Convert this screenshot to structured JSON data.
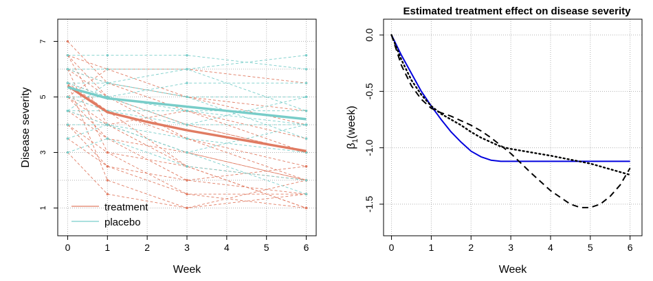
{
  "colors": {
    "treatment": "#e07b62",
    "placebo": "#78cdc9",
    "fit": "#0000dd",
    "black": "#000000",
    "grid": "#b0b0b0"
  },
  "chart_data": [
    {
      "type": "line",
      "title": "",
      "xlabel": "Week",
      "ylabel": "Disease severity",
      "xlim": [
        -0.25,
        6.25
      ],
      "ylim": [
        0,
        7.8
      ],
      "xticks": [
        "0",
        "1",
        "2",
        "3",
        "4",
        "5",
        "6"
      ],
      "yticks": [
        "1",
        "3",
        "5",
        "7"
      ],
      "grid": true,
      "legend_position": "bottom-left",
      "legend": [
        "treatment",
        "placebo"
      ],
      "x": [
        0,
        1,
        2,
        3,
        4,
        5,
        6
      ],
      "mean_series": [
        {
          "name": "treatment",
          "values": [
            5.4,
            4.45,
            4.1,
            3.8,
            3.55,
            3.3,
            3.05
          ]
        },
        {
          "name": "placebo",
          "values": [
            5.35,
            4.95,
            4.8,
            4.65,
            4.5,
            4.35,
            4.2
          ]
        }
      ],
      "subject_series": [
        {
          "group": "treatment",
          "x": [
            0,
            1,
            3,
            6
          ],
          "values": [
            7.0,
            5.5,
            4.5,
            3.5
          ]
        },
        {
          "group": "treatment",
          "x": [
            0,
            1,
            3,
            6
          ],
          "values": [
            6.5,
            4.0,
            2.5,
            2.0
          ]
        },
        {
          "group": "treatment",
          "x": [
            0,
            1,
            3,
            6
          ],
          "values": [
            6.0,
            3.0,
            1.5,
            1.0
          ]
        },
        {
          "group": "treatment",
          "x": [
            0,
            1,
            3,
            6
          ],
          "values": [
            6.0,
            5.0,
            4.0,
            3.0
          ]
        },
        {
          "group": "treatment",
          "x": [
            0,
            1,
            3,
            6
          ],
          "values": [
            5.5,
            2.0,
            1.0,
            1.5
          ]
        },
        {
          "group": "treatment",
          "x": [
            0,
            1,
            3,
            6
          ],
          "values": [
            5.5,
            4.5,
            3.5,
            2.5
          ]
        },
        {
          "group": "treatment",
          "x": [
            0,
            1,
            3,
            6
          ],
          "values": [
            5.0,
            6.0,
            5.0,
            4.0
          ]
        },
        {
          "group": "treatment",
          "x": [
            0,
            1,
            3,
            6
          ],
          "values": [
            5.0,
            3.5,
            2.0,
            1.5
          ]
        },
        {
          "group": "treatment",
          "x": [
            0,
            1,
            3,
            6
          ],
          "values": [
            4.5,
            4.0,
            3.0,
            2.0
          ]
        },
        {
          "group": "treatment",
          "x": [
            0,
            1,
            3,
            6
          ],
          "values": [
            4.0,
            3.0,
            2.5,
            1.0
          ]
        },
        {
          "group": "treatment",
          "x": [
            0,
            1,
            3,
            6
          ],
          "values": [
            3.5,
            2.5,
            2.0,
            2.5
          ]
        },
        {
          "group": "treatment",
          "x": [
            0,
            1,
            3,
            6
          ],
          "values": [
            3.0,
            1.5,
            1.0,
            2.0
          ]
        },
        {
          "group": "treatment",
          "x": [
            0,
            1,
            3,
            6
          ],
          "values": [
            6.5,
            6.0,
            6.0,
            5.5
          ]
        },
        {
          "group": "treatment",
          "x": [
            0,
            1,
            3,
            6
          ],
          "values": [
            5.0,
            4.5,
            2.5,
            1.0
          ]
        },
        {
          "group": "treatment",
          "x": [
            0,
            1,
            3,
            6
          ],
          "values": [
            6.0,
            5.5,
            5.0,
            4.5
          ]
        },
        {
          "group": "treatment",
          "x": [
            0,
            1,
            3,
            6
          ],
          "values": [
            4.5,
            3.5,
            3.0,
            2.0
          ]
        },
        {
          "group": "treatment",
          "x": [
            0,
            1,
            3,
            6
          ],
          "values": [
            5.5,
            5.0,
            4.0,
            3.0
          ]
        },
        {
          "group": "treatment",
          "x": [
            0,
            1,
            3,
            6
          ],
          "values": [
            4.0,
            2.5,
            1.5,
            1.5
          ]
        },
        {
          "group": "treatment",
          "x": [
            0,
            1,
            3,
            6
          ],
          "values": [
            6.5,
            5.0,
            3.5,
            2.0
          ]
        },
        {
          "group": "treatment",
          "x": [
            0,
            1,
            3,
            6
          ],
          "values": [
            5.0,
            4.0,
            4.5,
            3.0
          ]
        },
        {
          "group": "placebo",
          "x": [
            0,
            1,
            3,
            6
          ],
          "values": [
            6.5,
            6.5,
            6.5,
            6.0
          ]
        },
        {
          "group": "placebo",
          "x": [
            0,
            1,
            3,
            6
          ],
          "values": [
            6.0,
            6.0,
            6.0,
            6.5
          ]
        },
        {
          "group": "placebo",
          "x": [
            0,
            1,
            3,
            6
          ],
          "values": [
            5.5,
            5.5,
            5.0,
            5.0
          ]
        },
        {
          "group": "placebo",
          "x": [
            0,
            1,
            3,
            6
          ],
          "values": [
            5.5,
            5.0,
            5.5,
            5.5
          ]
        },
        {
          "group": "placebo",
          "x": [
            0,
            1,
            3,
            6
          ],
          "values": [
            5.0,
            5.0,
            4.5,
            4.0
          ]
        },
        {
          "group": "placebo",
          "x": [
            0,
            1,
            3,
            6
          ],
          "values": [
            5.0,
            4.5,
            4.5,
            4.5
          ]
        },
        {
          "group": "placebo",
          "x": [
            0,
            1,
            3,
            6
          ],
          "values": [
            4.5,
            4.5,
            4.0,
            4.0
          ]
        },
        {
          "group": "placebo",
          "x": [
            0,
            1,
            3,
            6
          ],
          "values": [
            4.5,
            4.0,
            3.0,
            4.0
          ]
        },
        {
          "group": "placebo",
          "x": [
            0,
            1,
            3,
            6
          ],
          "values": [
            4.0,
            4.0,
            3.5,
            3.0
          ]
        },
        {
          "group": "placebo",
          "x": [
            0,
            1,
            3,
            6
          ],
          "values": [
            3.0,
            3.5,
            2.5,
            2.0
          ]
        },
        {
          "group": "placebo",
          "x": [
            0,
            1,
            3,
            6
          ],
          "values": [
            6.0,
            5.5,
            6.0,
            4.5
          ]
        },
        {
          "group": "placebo",
          "x": [
            0,
            1,
            3,
            6
          ],
          "values": [
            5.5,
            5.0,
            4.0,
            5.0
          ]
        },
        {
          "group": "placebo",
          "x": [
            0,
            1,
            3,
            6
          ],
          "values": [
            4.5,
            5.5,
            5.0,
            3.5
          ]
        },
        {
          "group": "placebo",
          "x": [
            0,
            1,
            3,
            6
          ],
          "values": [
            3.5,
            4.0,
            3.0,
            1.5
          ]
        }
      ]
    },
    {
      "type": "line",
      "title": "Estimated treatment effect on disease severity",
      "xlabel": "Week",
      "ylabel_main": "β",
      "ylabel_sub": "1",
      "ylabel_rest": "(week)",
      "xlim": [
        -0.2,
        6.3
      ],
      "ylim": [
        -1.78,
        0.14
      ],
      "xticks": [
        "0",
        "1",
        "2",
        "3",
        "4",
        "5",
        "6"
      ],
      "yticks": [
        "0.0",
        "-0.5",
        "-1.0",
        "-1.5"
      ],
      "ytick_values": [
        0.0,
        -0.5,
        -1.0,
        -1.5
      ],
      "grid": true,
      "series": [
        {
          "name": "solid (blue)",
          "style": "solid",
          "x": [
            0,
            0.25,
            0.5,
            0.75,
            1,
            1.25,
            1.5,
            1.75,
            2,
            2.25,
            2.5,
            2.75,
            2.9,
            3,
            4,
            5,
            6
          ],
          "values": [
            0,
            -0.18,
            -0.34,
            -0.5,
            -0.63,
            -0.75,
            -0.86,
            -0.95,
            -1.03,
            -1.08,
            -1.11,
            -1.12,
            -1.12,
            -1.12,
            -1.12,
            -1.12,
            -1.12
          ]
        },
        {
          "name": "dashed",
          "style": "dashed",
          "x": [
            0,
            0.25,
            0.5,
            0.75,
            1,
            1.25,
            1.5,
            1.75,
            2,
            2.25,
            2.5,
            2.75,
            3,
            3.5,
            4,
            4.5,
            4.75,
            5,
            5.25,
            5.5,
            5.75,
            6
          ],
          "values": [
            0,
            -0.27,
            -0.45,
            -0.57,
            -0.65,
            -0.69,
            -0.72,
            -0.76,
            -0.8,
            -0.85,
            -0.91,
            -0.98,
            -1.05,
            -1.22,
            -1.38,
            -1.5,
            -1.53,
            -1.53,
            -1.5,
            -1.43,
            -1.33,
            -1.18
          ]
        },
        {
          "name": "dotted",
          "style": "dotted",
          "x": [
            0,
            0.25,
            0.5,
            0.75,
            1,
            1.25,
            1.5,
            1.75,
            2,
            2.25,
            2.5,
            2.75,
            3,
            4,
            5,
            6
          ],
          "values": [
            0,
            -0.22,
            -0.4,
            -0.53,
            -0.63,
            -0.7,
            -0.75,
            -0.8,
            -0.86,
            -0.91,
            -0.95,
            -0.99,
            -1.01,
            -1.07,
            -1.14,
            -1.24
          ]
        }
      ]
    }
  ]
}
